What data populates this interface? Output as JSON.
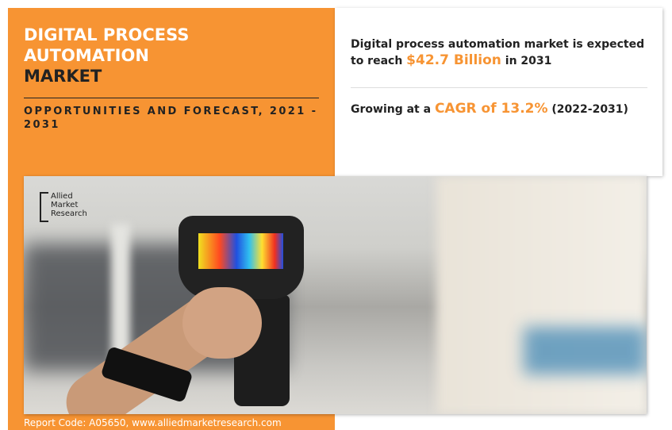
{
  "header": {
    "title_line1": "DIGITAL PROCESS",
    "title_line2": "AUTOMATION",
    "title_line3": "MARKET",
    "subtitle": "OPPORTUNITIES AND FORECAST, 2021 - 2031"
  },
  "stats": {
    "market_prefix": "Digital process automation market is expected to reach ",
    "market_value": "$42.7 Billion",
    "market_suffix": " in 2031",
    "cagr_prefix": "Growing at a ",
    "cagr_value": "CAGR of 13.2%",
    "cagr_suffix": " (2022-2031)"
  },
  "logo": {
    "line1": "Allied",
    "line2": "Market",
    "line3": "Research"
  },
  "footer": {
    "text": "Report Code: A05650, www.alliedmarketresearch.com"
  },
  "colors": {
    "accent": "#f79433",
    "dark": "#222222"
  }
}
